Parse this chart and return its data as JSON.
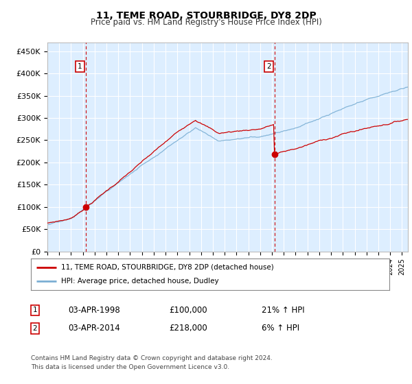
{
  "title": "11, TEME ROAD, STOURBRIDGE, DY8 2DP",
  "subtitle": "Price paid vs. HM Land Registry's House Price Index (HPI)",
  "ylabel_ticks": [
    "£0",
    "£50K",
    "£100K",
    "£150K",
    "£200K",
    "£250K",
    "£300K",
    "£350K",
    "£400K",
    "£450K"
  ],
  "ytick_vals": [
    0,
    50000,
    100000,
    150000,
    200000,
    250000,
    300000,
    350000,
    400000,
    450000
  ],
  "ylim": [
    0,
    470000
  ],
  "xlim_start": 1995.0,
  "xlim_end": 2025.5,
  "bg_color": "#ddeeff",
  "grid_color": "#ffffff",
  "transaction1_year": 1998.25,
  "transaction1_price": 100000,
  "transaction2_year": 2014.25,
  "transaction2_price": 218000,
  "red_color": "#cc0000",
  "blue_color": "#7bafd4",
  "legend_label_red": "11, TEME ROAD, STOURBRIDGE, DY8 2DP (detached house)",
  "legend_label_blue": "HPI: Average price, detached house, Dudley",
  "ann1_label": "1",
  "ann1_date": "03-APR-1998",
  "ann1_price": "£100,000",
  "ann1_hpi": "21% ↑ HPI",
  "ann2_label": "2",
  "ann2_date": "03-APR-2014",
  "ann2_price": "£218,000",
  "ann2_hpi": "6% ↑ HPI",
  "footer": "Contains HM Land Registry data © Crown copyright and database right 2024.\nThis data is licensed under the Open Government Licence v3.0."
}
